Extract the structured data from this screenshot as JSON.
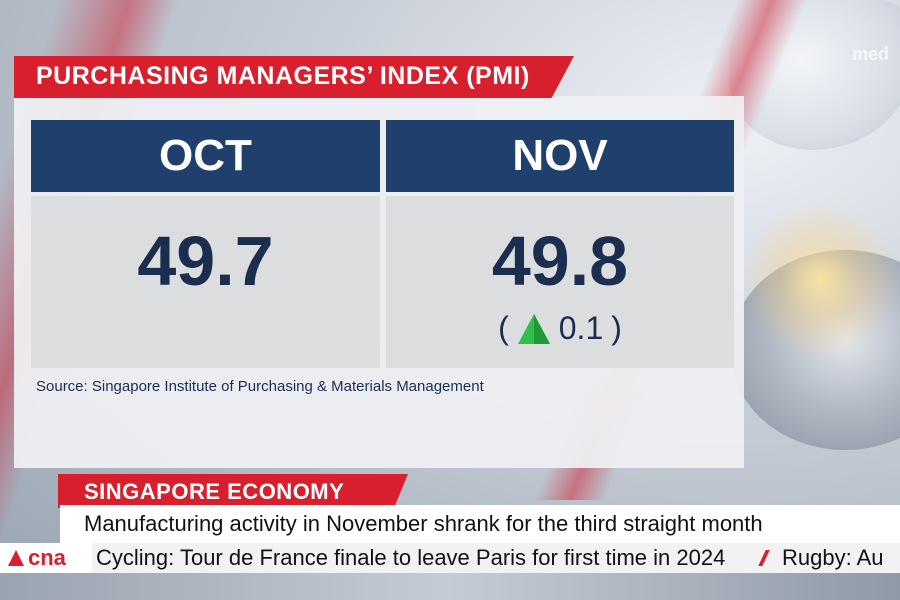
{
  "brand": {
    "accent": "#d81f2d",
    "navy": "#1f3f6d",
    "up_color": "#2fbf4a"
  },
  "background": {
    "watermark": "med"
  },
  "pmi": {
    "title": "PURCHASING MANAGERS’ INDEX (PMI)",
    "columns": [
      {
        "month": "OCT",
        "value": "49.7"
      },
      {
        "month": "NOV",
        "value": "49.8",
        "change_open": "(",
        "change_value": "0.1",
        "change_close": ")",
        "change_direction": "up-arrow-icon"
      }
    ],
    "source": "Source: Singapore Institute of Purchasing & Materials Management"
  },
  "lower_third": {
    "topic": "SINGAPORE ECONOMY",
    "headline": "Manufacturing activity in November shrank for the third straight month"
  },
  "ticker": {
    "channel": "cna",
    "items": [
      "Cycling: Tour de France finale to leave Paris for first time in 2024",
      "Rugby: Au"
    ]
  }
}
